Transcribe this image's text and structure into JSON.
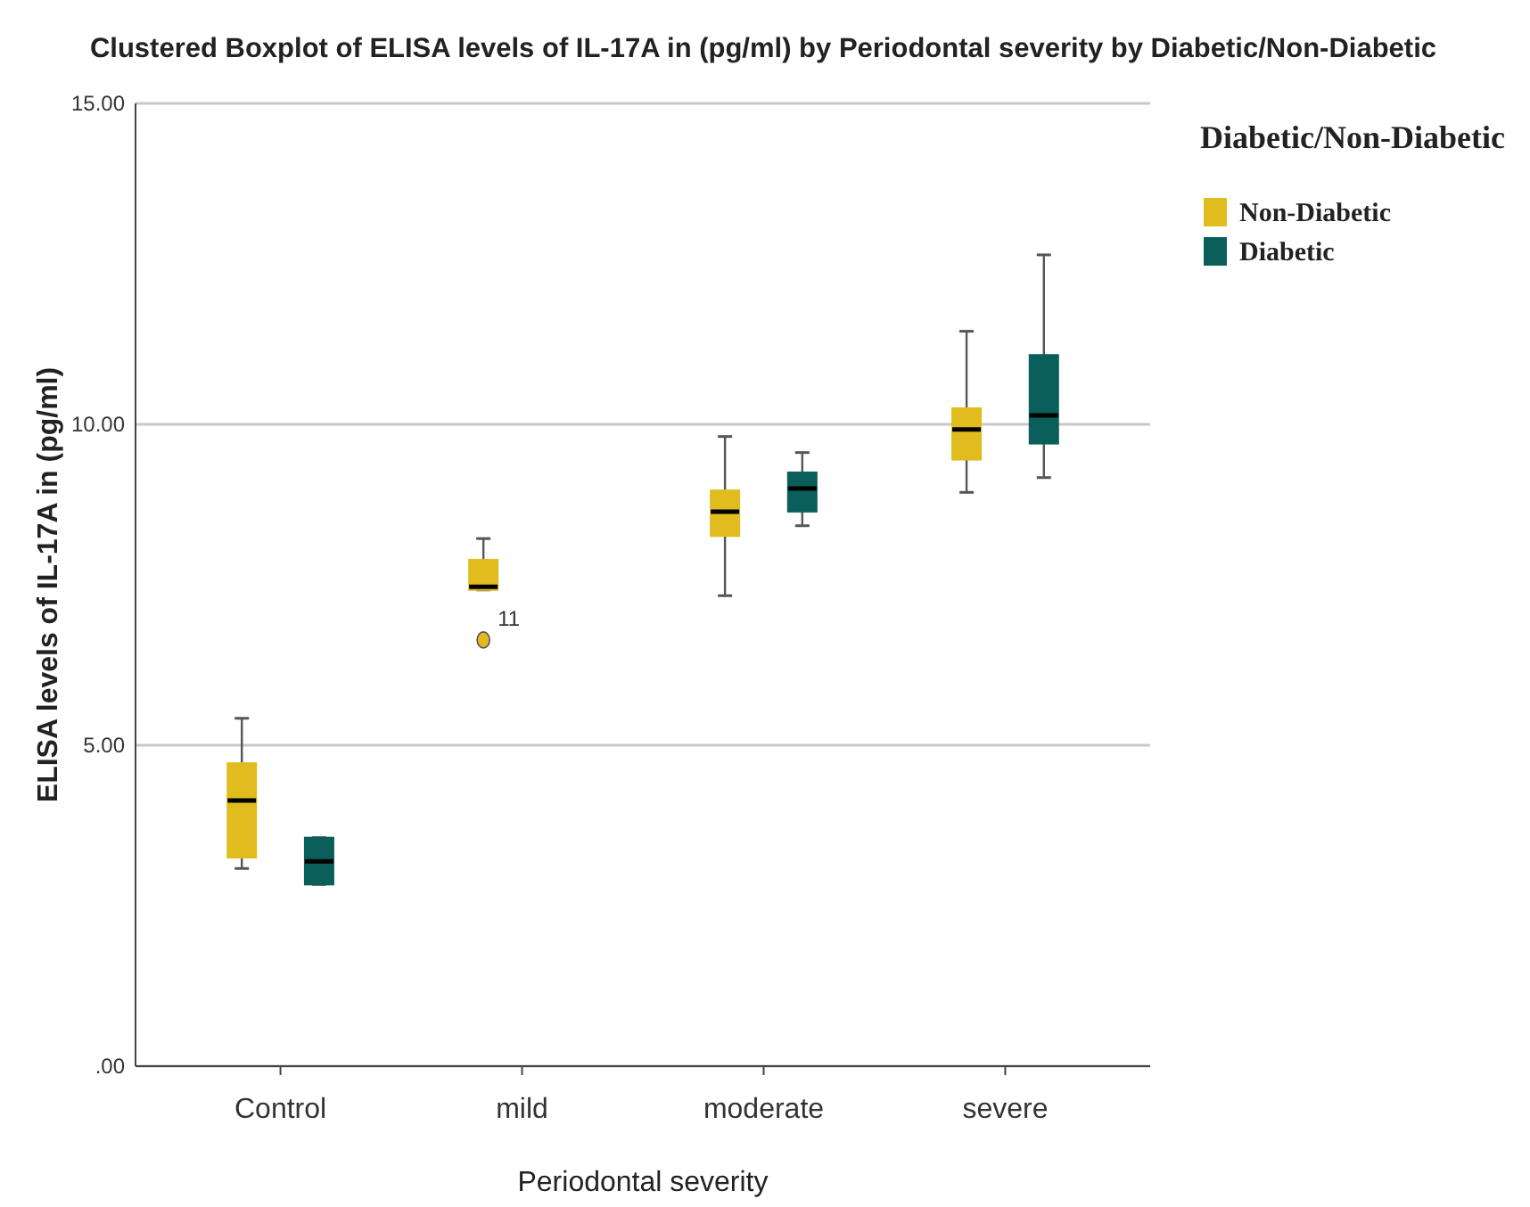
{
  "chart_data": {
    "type": "box",
    "title": "Clustered Boxplot of ELISA levels of IL-17A in (pg/ml) by Periodontal severity by Diabetic/Non-Diabetic",
    "xlabel": "Periodontal severity",
    "ylabel": "ELISA levels of IL-17A in (pg/ml)",
    "legend_title": "Diabetic/Non-Diabetic",
    "categories": [
      "Control",
      "mild",
      "moderate",
      "severe"
    ],
    "series": [
      {
        "name": "Non-Diabetic",
        "color": "#e1bc1f",
        "boxes": [
          {
            "low": 3.08,
            "q1": 3.25,
            "median": 4.14,
            "q3": 4.72,
            "high": 5.42
          },
          {
            "low": 7.42,
            "q1": 7.42,
            "median": 7.47,
            "q3": 7.89,
            "high": 8.22,
            "outliers": [
              6.64
            ]
          },
          {
            "low": 7.33,
            "q1": 8.26,
            "median": 8.64,
            "q3": 8.97,
            "high": 9.81
          },
          {
            "low": 8.94,
            "q1": 9.45,
            "median": 9.92,
            "q3": 10.25,
            "high": 11.45
          }
        ]
      },
      {
        "name": "Diabetic",
        "color": "#0a5f5b",
        "boxes": [
          {
            "low": 2.83,
            "q1": 2.83,
            "median": 3.19,
            "q3": 3.56,
            "high": 3.56
          },
          null,
          {
            "low": 8.42,
            "q1": 8.64,
            "median": 9.0,
            "q3": 9.25,
            "high": 9.56
          },
          {
            "low": 9.17,
            "q1": 9.7,
            "median": 10.14,
            "q3": 11.08,
            "high": 12.64
          }
        ]
      }
    ],
    "annotations": [
      "11"
    ],
    "ylim": [
      0,
      15
    ],
    "yticks": [
      {
        "value": 0,
        "label": ".00"
      },
      {
        "value": 5,
        "label": "5.00"
      },
      {
        "value": 10,
        "label": "10.00"
      },
      {
        "value": 15,
        "label": "15.00"
      }
    ],
    "grid": "y",
    "legend": "top right"
  }
}
